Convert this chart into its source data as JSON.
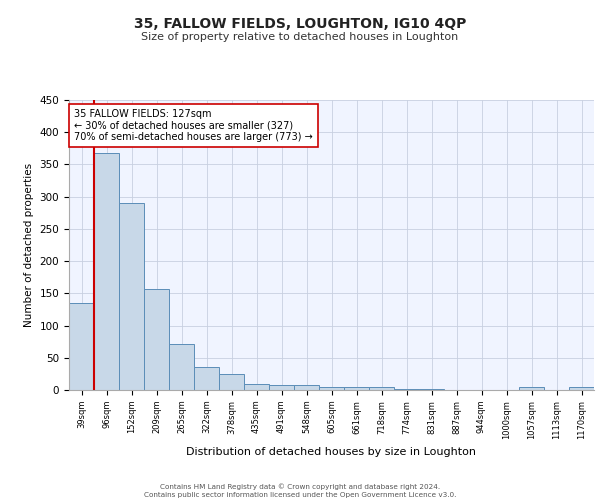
{
  "title": "35, FALLOW FIELDS, LOUGHTON, IG10 4QP",
  "subtitle": "Size of property relative to detached houses in Loughton",
  "xlabel": "Distribution of detached houses by size in Loughton",
  "ylabel": "Number of detached properties",
  "categories": [
    "39sqm",
    "96sqm",
    "152sqm",
    "209sqm",
    "265sqm",
    "322sqm",
    "378sqm",
    "435sqm",
    "491sqm",
    "548sqm",
    "605sqm",
    "661sqm",
    "718sqm",
    "774sqm",
    "831sqm",
    "887sqm",
    "944sqm",
    "1000sqm",
    "1057sqm",
    "1113sqm",
    "1170sqm"
  ],
  "values": [
    135,
    368,
    290,
    156,
    72,
    36,
    25,
    10,
    8,
    7,
    4,
    4,
    5,
    2,
    2,
    0,
    0,
    0,
    4,
    0,
    4
  ],
  "bar_color": "#c8d8e8",
  "bar_edge_color": "#5b8db8",
  "vline_color": "#cc0000",
  "vline_x_index": 1,
  "annotation_text": "35 FALLOW FIELDS: 127sqm\n← 30% of detached houses are smaller (327)\n70% of semi-detached houses are larger (773) →",
  "annotation_box_color": "#ffffff",
  "annotation_box_edge": "#cc0000",
  "ylim": [
    0,
    450
  ],
  "yticks": [
    0,
    50,
    100,
    150,
    200,
    250,
    300,
    350,
    400,
    450
  ],
  "grid_color": "#c8d0e0",
  "footer_line1": "Contains HM Land Registry data © Crown copyright and database right 2024.",
  "footer_line2": "Contains public sector information licensed under the Open Government Licence v3.0.",
  "bg_color": "#f0f4ff",
  "title_fontsize": 10,
  "subtitle_fontsize": 8
}
